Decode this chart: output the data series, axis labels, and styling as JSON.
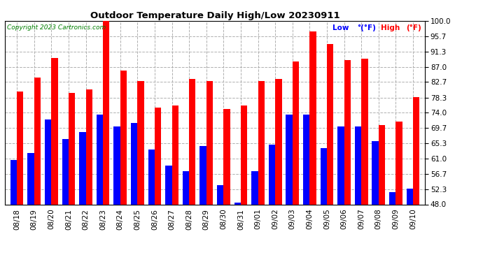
{
  "title": "Outdoor Temperature Daily High/Low 20230911",
  "copyright": "Copyright 2023 Cartronics.com",
  "dates": [
    "08/18",
    "08/19",
    "08/20",
    "08/21",
    "08/22",
    "08/23",
    "08/24",
    "08/25",
    "08/26",
    "08/27",
    "08/28",
    "08/29",
    "08/30",
    "08/31",
    "09/01",
    "09/02",
    "09/03",
    "09/04",
    "09/05",
    "09/06",
    "09/07",
    "09/08",
    "09/09",
    "09/10"
  ],
  "highs": [
    80.0,
    84.0,
    89.5,
    79.5,
    80.5,
    100.0,
    86.0,
    83.0,
    75.5,
    76.0,
    83.5,
    83.0,
    75.0,
    76.0,
    83.0,
    83.5,
    88.5,
    97.0,
    93.5,
    89.0,
    89.3,
    70.5,
    71.5,
    78.5
  ],
  "lows": [
    60.5,
    62.5,
    72.0,
    66.5,
    68.5,
    73.5,
    70.0,
    71.0,
    63.5,
    59.0,
    57.5,
    64.5,
    53.5,
    48.5,
    57.5,
    65.0,
    73.5,
    73.5,
    64.0,
    70.0,
    70.0,
    66.0,
    51.5,
    52.5
  ],
  "ylim_min": 48.0,
  "ylim_max": 100.0,
  "yticks": [
    48.0,
    52.3,
    56.7,
    61.0,
    65.3,
    69.7,
    74.0,
    78.3,
    82.7,
    87.0,
    91.3,
    95.7,
    100.0
  ],
  "high_color": "#ff0000",
  "low_color": "#0000ff",
  "bg_color": "#ffffff",
  "grid_color": "#b0b0b0",
  "bar_width": 0.38
}
